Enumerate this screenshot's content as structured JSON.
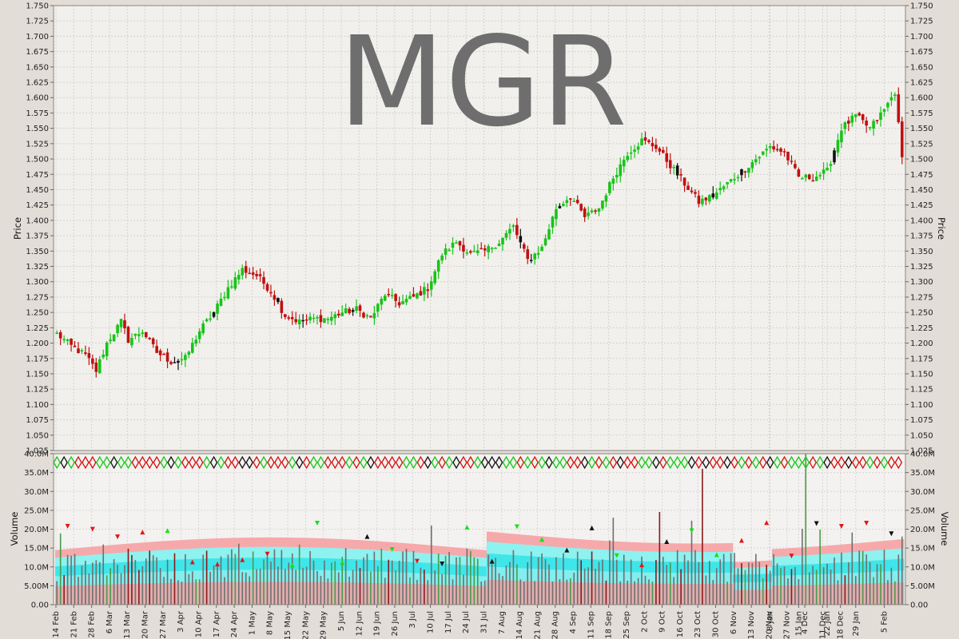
{
  "chart_data": {
    "type": "candlestick",
    "title": "MGR",
    "price_panel": {
      "ylabel": "Price",
      "ylim": [
        1.025,
        1.75
      ],
      "ytick_labels": [
        "1.025",
        "1.050",
        "1.075",
        "1.100",
        "1.125",
        "1.150",
        "1.175",
        "1.200",
        "1.225",
        "1.250",
        "1.275",
        "1.300",
        "1.325",
        "1.350",
        "1.375",
        "1.400",
        "1.425",
        "1.450",
        "1.475",
        "1.500",
        "1.525",
        "1.550",
        "1.575",
        "1.600",
        "1.625",
        "1.650",
        "1.675",
        "1.700",
        "1.725",
        "1.750"
      ],
      "grid": true
    },
    "volume_panel": {
      "ylabel": "Volume",
      "ylim": [
        0,
        40000000
      ],
      "ytick_labels": [
        "0.00",
        "5.00M",
        "10.0M",
        "15.0M",
        "20.0M",
        "25.0M",
        "30.0M",
        "35.0M",
        "40.0M"
      ],
      "grid": true
    },
    "x_tick_labels": [
      "14 Feb",
      "21 Feb",
      "28 Feb",
      "6 Mar",
      "13 Mar",
      "20 Mar",
      "27 Mar",
      "3 Apr",
      "10 Apr",
      "17 Apr",
      "24 Apr",
      "1 May",
      "8 May",
      "15 May",
      "22 May",
      "29 May",
      "5 Jun",
      "12 Jun",
      "19 Jun",
      "26 Jun",
      "3 Jul",
      "10 Jul",
      "17 Jul",
      "24 Jul",
      "31 Jul",
      "7 Aug",
      "14 Aug",
      "21 Aug",
      "28 Aug",
      "4 Sep",
      "11 Sep",
      "18 Sep",
      "25 Sep",
      "2 Oct",
      "9 Oct",
      "16 Oct",
      "23 Oct",
      "30 Oct",
      "6 Nov",
      "13 Nov",
      "20 Nov",
      "27 Nov",
      "4 Dec",
      "11 Dec",
      "18 Dec",
      "8 Jan",
      "15 Jan",
      "22 Jan",
      "29 Jan",
      "5 Feb"
    ],
    "price_anchors": [
      [
        0,
        1.215
      ],
      [
        4,
        1.195
      ],
      [
        8,
        1.18
      ],
      [
        11,
        1.155
      ],
      [
        14,
        1.2
      ],
      [
        18,
        1.235
      ],
      [
        20,
        1.205
      ],
      [
        24,
        1.22
      ],
      [
        28,
        1.185
      ],
      [
        32,
        1.17
      ],
      [
        36,
        1.175
      ],
      [
        40,
        1.22
      ],
      [
        44,
        1.25
      ],
      [
        48,
        1.29
      ],
      [
        52,
        1.32
      ],
      [
        56,
        1.31
      ],
      [
        60,
        1.285
      ],
      [
        64,
        1.245
      ],
      [
        68,
        1.235
      ],
      [
        72,
        1.24
      ],
      [
        76,
        1.24
      ],
      [
        80,
        1.25
      ],
      [
        84,
        1.255
      ],
      [
        88,
        1.24
      ],
      [
        92,
        1.28
      ],
      [
        96,
        1.265
      ],
      [
        100,
        1.275
      ],
      [
        104,
        1.29
      ],
      [
        108,
        1.345
      ],
      [
        112,
        1.365
      ],
      [
        116,
        1.345
      ],
      [
        120,
        1.35
      ],
      [
        124,
        1.365
      ],
      [
        128,
        1.39
      ],
      [
        132,
        1.335
      ],
      [
        136,
        1.355
      ],
      [
        140,
        1.42
      ],
      [
        144,
        1.44
      ],
      [
        148,
        1.405
      ],
      [
        152,
        1.42
      ],
      [
        156,
        1.47
      ],
      [
        160,
        1.51
      ],
      [
        164,
        1.53
      ],
      [
        168,
        1.52
      ],
      [
        172,
        1.49
      ],
      [
        176,
        1.46
      ],
      [
        180,
        1.43
      ],
      [
        184,
        1.44
      ],
      [
        188,
        1.46
      ],
      [
        192,
        1.48
      ],
      [
        196,
        1.5
      ],
      [
        200,
        1.52
      ],
      [
        204,
        1.51
      ],
      [
        208,
        1.47
      ],
      [
        212,
        1.47
      ],
      [
        216,
        1.48
      ],
      [
        220,
        1.55
      ],
      [
        224,
        1.57
      ],
      [
        228,
        1.55
      ],
      [
        232,
        1.58
      ],
      [
        235,
        1.61
      ],
      [
        237,
        1.5
      ]
    ],
    "volume_label": "Volume",
    "price_label": "Price"
  }
}
